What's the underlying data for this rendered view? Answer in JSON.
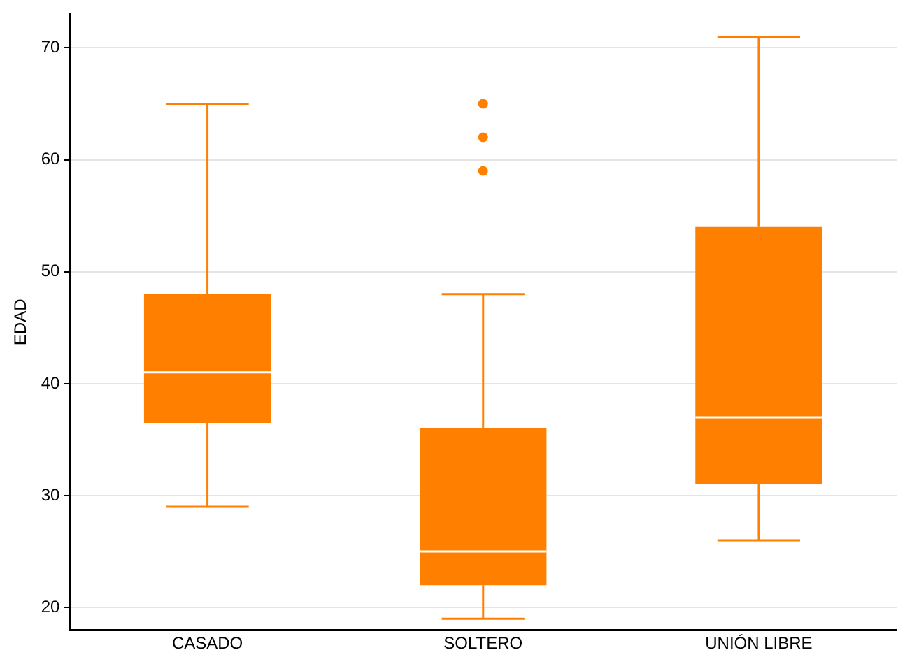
{
  "chart_data": {
    "type": "box",
    "ylabel": "EDAD",
    "categories": [
      "CASADO",
      "SOLTERO",
      "UNIÓN LIBRE"
    ],
    "color": "#ff8000",
    "boxes": [
      {
        "low": 29,
        "q1": 36.5,
        "median": 41,
        "q3": 48,
        "high": 65
      },
      {
        "low": 19,
        "q1": 22,
        "median": 25,
        "q3": 36,
        "high": 48,
        "outliers": [
          59,
          62,
          65
        ]
      },
      {
        "low": 26,
        "q1": 31,
        "median": 37,
        "q3": 54,
        "high": 71
      }
    ],
    "ylim": [
      18,
      73
    ],
    "yticks": [
      20,
      30,
      40,
      50,
      60,
      70
    ],
    "grid": "y",
    "legend": false
  }
}
